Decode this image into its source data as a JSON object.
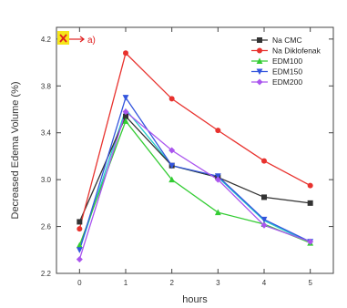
{
  "chart_data": {
    "type": "line",
    "xlabel": "hours",
    "ylabel": "Decreased Edema Volume (%)",
    "xlim": [
      -0.5,
      5.5
    ],
    "ylim": [
      2.2,
      4.3
    ],
    "xticks": [
      0,
      1,
      2,
      3,
      4,
      5
    ],
    "yticks": [
      2.2,
      2.6,
      3.0,
      3.4,
      3.8,
      4.2
    ],
    "grid": false,
    "legend_position": "top-right",
    "annotation": "a)",
    "x": [
      0,
      1,
      2,
      3,
      4,
      5
    ],
    "series": [
      {
        "name": "Na CMC",
        "color": "#333333",
        "marker": "square",
        "values": [
          2.64,
          3.54,
          3.12,
          3.02,
          2.85,
          2.8
        ]
      },
      {
        "name": "Na Diklofenak",
        "color": "#e8322e",
        "marker": "circle",
        "values": [
          2.58,
          4.08,
          3.69,
          3.42,
          3.16,
          2.95
        ]
      },
      {
        "name": "EDM100",
        "color": "#33cc33",
        "marker": "triangle-up",
        "values": [
          2.44,
          3.5,
          3.0,
          2.72,
          2.62,
          2.46
        ]
      },
      {
        "name": "EDM150",
        "color": "#3355dd",
        "marker": "triangle-down",
        "values": [
          2.4,
          3.7,
          3.12,
          3.03,
          2.66,
          2.47
        ]
      },
      {
        "name": "EDM200",
        "color": "#aa55ee",
        "marker": "diamond",
        "values": [
          2.32,
          3.58,
          3.25,
          3.0,
          2.61,
          2.47
        ]
      }
    ],
    "extra_lines": [
      {
        "color": "#22cccc",
        "values": [
          2.4,
          3.6,
          3.12,
          3.02,
          2.65,
          2.46
        ]
      }
    ]
  }
}
